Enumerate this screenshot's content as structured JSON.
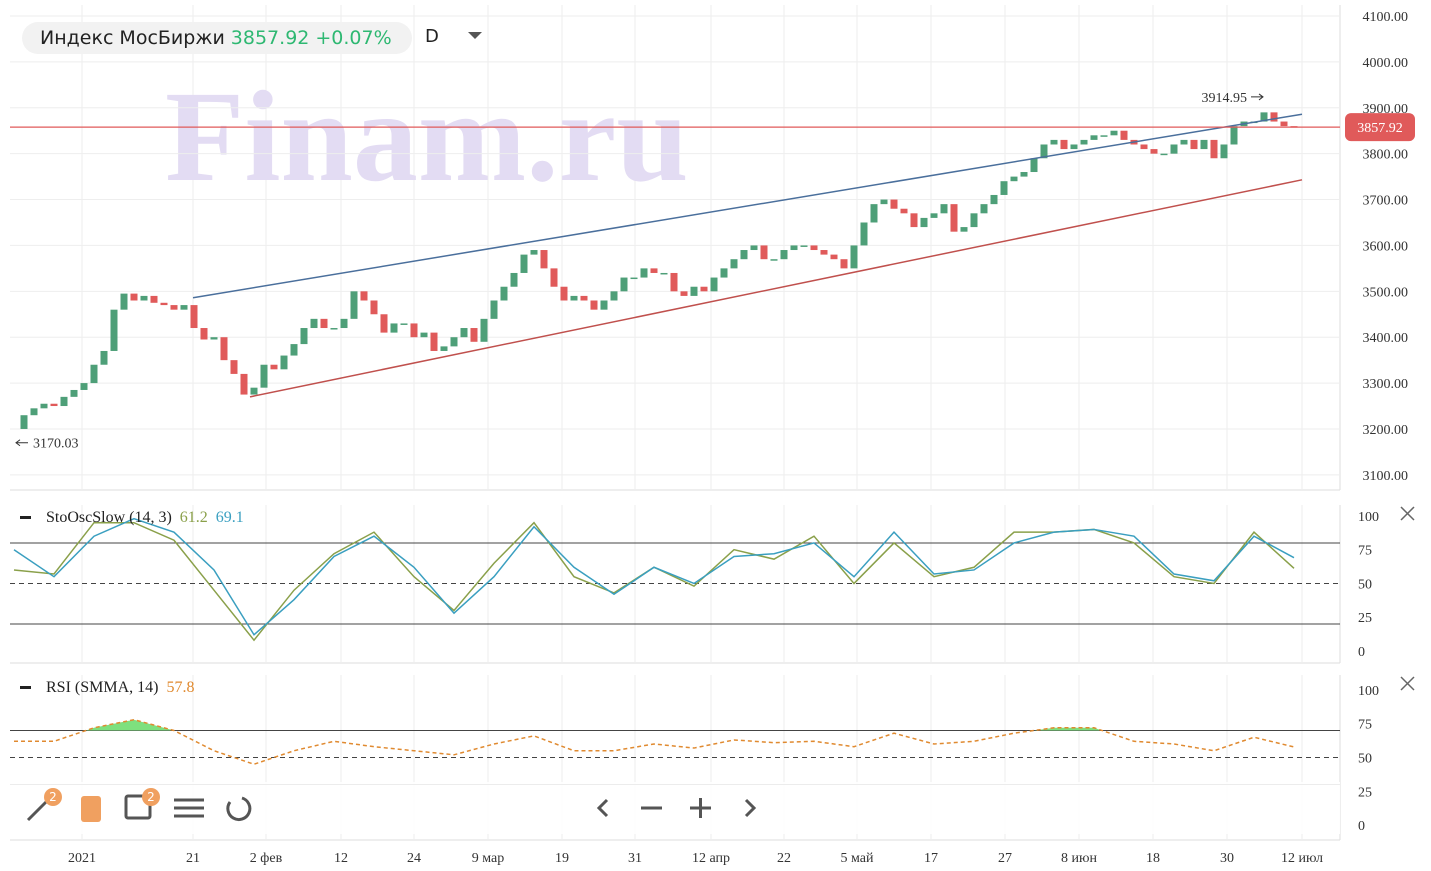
{
  "header": {
    "title": "Индекс МосБиржи",
    "price": "3857.92",
    "change": "+0.07%",
    "interval": "D"
  },
  "toolbar": {
    "badges": [
      2,
      2
    ]
  },
  "chart_data": [
    {
      "type": "candlestick",
      "watermark": "Finam.ru",
      "close": [
        3200,
        3230,
        3245,
        3255,
        3250,
        3270,
        3285,
        3300,
        3340,
        3370,
        3460,
        3495,
        3480,
        3490,
        3475,
        3470,
        3460,
        3470,
        3420,
        3395,
        3400,
        3350,
        3320,
        3275,
        3290,
        3340,
        3330,
        3360,
        3385,
        3420,
        3440,
        3420,
        3420,
        3440,
        3500,
        3480,
        3450,
        3410,
        3430,
        3430,
        3400,
        3410,
        3370,
        3380,
        3400,
        3420,
        3390,
        3440,
        3480,
        3510,
        3540,
        3580,
        3590,
        3550,
        3510,
        3480,
        3490,
        3480,
        3460,
        3480,
        3500,
        3530,
        3530,
        3550,
        3540,
        3540,
        3500,
        3490,
        3510,
        3500,
        3530,
        3550,
        3570,
        3590,
        3600,
        3570,
        3570,
        3590,
        3600,
        3600,
        3590,
        3580,
        3570,
        3550,
        3600,
        3650,
        3690,
        3700,
        3680,
        3670,
        3640,
        3660,
        3670,
        3690,
        3630,
        3640,
        3670,
        3690,
        3710,
        3740,
        3750,
        3760,
        3790,
        3820,
        3830,
        3810,
        3820,
        3830,
        3840,
        3840,
        3850,
        3830,
        3820,
        3810,
        3800,
        3800,
        3820,
        3830,
        3810,
        3830,
        3790,
        3820,
        3860,
        3870,
        3870,
        3890,
        3870,
        3860,
        3857.92
      ],
      "up_color": "#4e9f78",
      "down_color": "#e05a5a",
      "xlim": [
        -0.4,
        132.6
      ],
      "xticks": [
        {
          "value": 6.8,
          "label": "2021"
        },
        {
          "value": 17.9,
          "label": "21"
        },
        {
          "value": 25.2,
          "label": "2 фев"
        },
        {
          "value": 32.7,
          "label": "12"
        },
        {
          "value": 40,
          "label": "24"
        },
        {
          "value": 47.4,
          "label": "9 мар"
        },
        {
          "value": 54.8,
          "label": "19"
        },
        {
          "value": 62.1,
          "label": "31"
        },
        {
          "value": 69.7,
          "label": "12 апр"
        },
        {
          "value": 77,
          "label": "22"
        },
        {
          "value": 84.3,
          "label": "5 май"
        },
        {
          "value": 91.7,
          "label": "17"
        },
        {
          "value": 99.1,
          "label": "27"
        },
        {
          "value": 106.5,
          "label": "8 июн"
        },
        {
          "value": 113.9,
          "label": "18"
        },
        {
          "value": 121.3,
          "label": "30"
        },
        {
          "value": 128.8,
          "label": "12 июл"
        }
      ],
      "ylim": [
        3067,
        4124
      ],
      "yticks": [
        {
          "value": 3100,
          "label": "3100.00"
        },
        {
          "value": 3200,
          "label": "3200.00"
        },
        {
          "value": 3300,
          "label": "3300.00"
        },
        {
          "value": 3400,
          "label": "3400.00"
        },
        {
          "value": 3500,
          "label": "3500.00"
        },
        {
          "value": 3600,
          "label": "3600.00"
        },
        {
          "value": 3700,
          "label": "3700.00"
        },
        {
          "value": 3800,
          "label": "3800.00"
        },
        {
          "value": 3900,
          "label": "3900.00"
        },
        {
          "value": 4000,
          "label": "4000.00"
        },
        {
          "value": 4100,
          "label": "4100.00"
        }
      ],
      "grid": true,
      "last": {
        "value": 3857.92,
        "color": "#e05a5a"
      },
      "max": {
        "x": 125.5,
        "value": 3914.95
      },
      "min": {
        "x": 0,
        "value": 3170.03
      },
      "trendlines": [
        {
          "color": "#4a6f9c",
          "x": [
            17.9,
            128.8
          ],
          "y": [
            3486,
            3886
          ]
        },
        {
          "color": "#c0504d",
          "x": [
            23.6,
            128.8
          ],
          "y": [
            3270,
            3743
          ]
        }
      ]
    },
    {
      "type": "line",
      "title": "StoOscSlow (14, 3)",
      "x": [
        0,
        4,
        8,
        12,
        16,
        20,
        24,
        28,
        32,
        36,
        40,
        44,
        48,
        52,
        56,
        60,
        64,
        68,
        72,
        76,
        80,
        84,
        88,
        92,
        96,
        100,
        104,
        108,
        112,
        116,
        120,
        124,
        128
      ],
      "series": [
        {
          "color": "#8aa04a",
          "values": [
            60,
            57,
            95,
            95,
            82,
            45,
            8,
            45,
            72,
            88,
            55,
            30,
            65,
            95,
            55,
            43,
            62,
            48,
            75,
            68,
            85,
            50,
            80,
            55,
            62,
            88,
            88,
            90,
            80,
            55,
            50,
            88,
            61.2
          ]
        },
        {
          "color": "#3a9fc0",
          "values": [
            75,
            55,
            85,
            98,
            88,
            60,
            12,
            38,
            70,
            85,
            62,
            28,
            55,
            92,
            62,
            42,
            62,
            50,
            70,
            72,
            80,
            55,
            88,
            57,
            60,
            80,
            88,
            90,
            85,
            57,
            52,
            85,
            69.1
          ]
        }
      ],
      "xlim": [
        -0.4,
        132.6
      ],
      "ylim": [
        -8.9,
        108.1
      ],
      "yticks": [
        0,
        25,
        50,
        75,
        100
      ],
      "levels": [
        80,
        50,
        20
      ]
    },
    {
      "type": "line",
      "title": "RSI (SMMA, 14)",
      "x": [
        0,
        4,
        8,
        12,
        16,
        20,
        24,
        28,
        32,
        36,
        40,
        44,
        48,
        52,
        56,
        60,
        64,
        68,
        72,
        76,
        80,
        84,
        88,
        92,
        96,
        100,
        104,
        108,
        112,
        116,
        120,
        124,
        128
      ],
      "series": [
        {
          "color": "#e08a30",
          "values": [
            62,
            62,
            72,
            78,
            70,
            55,
            45,
            55,
            62,
            58,
            55,
            52,
            60,
            66,
            55,
            55,
            60,
            57,
            63,
            61,
            62,
            58,
            68,
            60,
            62,
            68,
            72,
            72,
            62,
            60,
            55,
            65,
            57.8
          ]
        }
      ],
      "xlim": [
        -0.4,
        132.6
      ],
      "ylim": [
        -11.1,
        111.1
      ],
      "yticks": [
        0,
        25,
        50,
        75,
        100
      ],
      "levels": [
        70,
        50,
        30
      ],
      "fill_above": 70,
      "fill_color": "#7ee07e"
    }
  ]
}
